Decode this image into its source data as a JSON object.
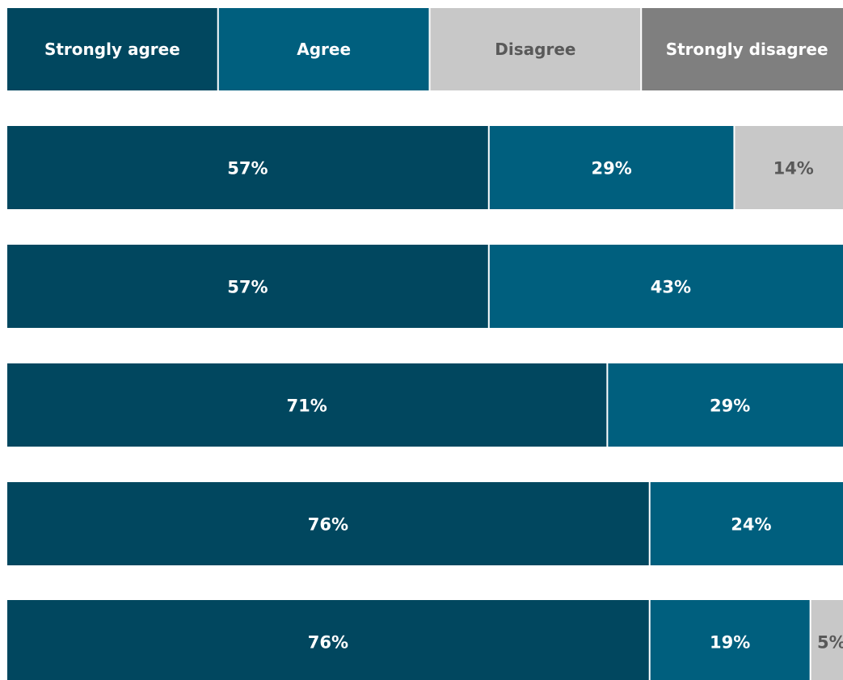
{
  "chart_data": {
    "type": "bar",
    "orientation": "horizontal",
    "stacked": true,
    "normalized_percent": true,
    "legend_position": "top",
    "categories": [
      "",
      "",
      "",
      "",
      ""
    ],
    "series": [
      {
        "name": "Strongly agree",
        "color": "#01475F",
        "text_color": "#FFFFFF",
        "values": [
          57,
          57,
          71,
          76,
          76
        ],
        "labels": [
          "57%",
          "57%",
          "71%",
          "76%",
          "76%"
        ]
      },
      {
        "name": "Agree",
        "color": "#005F7E",
        "text_color": "#FFFFFF",
        "values": [
          29,
          43,
          29,
          24,
          19
        ],
        "labels": [
          "29%",
          "43%",
          "29%",
          "24%",
          "19%"
        ]
      },
      {
        "name": "Disagree",
        "color": "#C8C8C8",
        "text_color": "#595959",
        "values": [
          14,
          0,
          0,
          0,
          5
        ],
        "labels": [
          "14%",
          "",
          "",
          "",
          "5%"
        ]
      },
      {
        "name": "Strongly disagree",
        "color": "#7F7F7F",
        "text_color": "#FFFFFF",
        "values": [
          0,
          0,
          0,
          0,
          0
        ],
        "labels": [
          "",
          "",
          "",
          "",
          ""
        ]
      }
    ]
  }
}
